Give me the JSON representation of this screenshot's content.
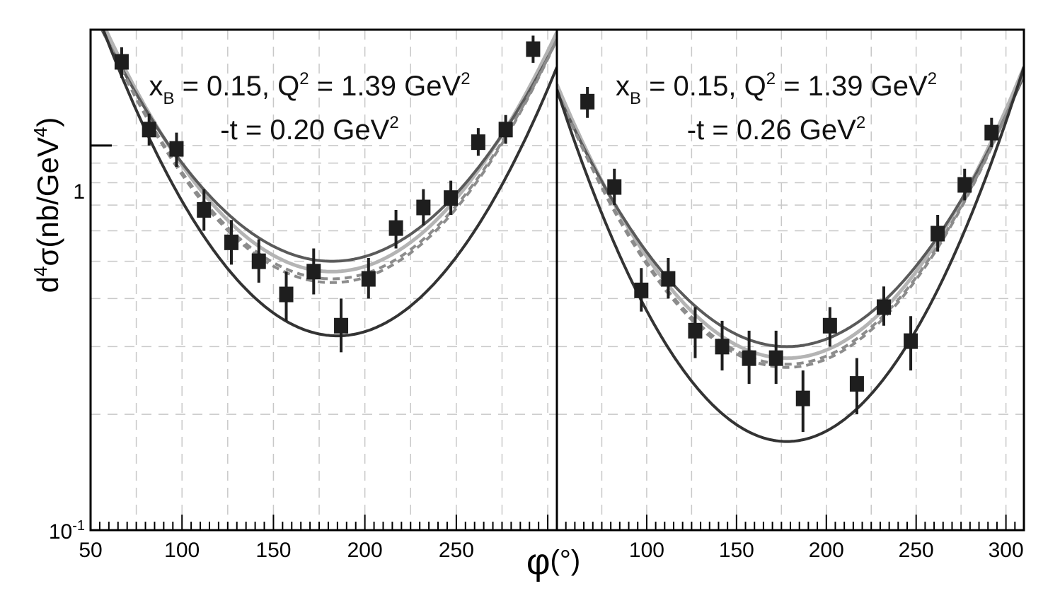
{
  "chart_data": {
    "type": "scatter",
    "y_scale": "log",
    "ylim": [
      0.1,
      2.0
    ],
    "y_tick_labels": [
      {
        "value": 1,
        "text": "1"
      },
      {
        "value": 0.1,
        "base": "10",
        "exp": "-1"
      }
    ],
    "ylabel": {
      "main": "d",
      "sup1": "4",
      "mid": "σ(nb/GeV",
      "sup2": "4",
      "end": ")"
    },
    "xlabel": {
      "main": "φ",
      "unit": "(°)"
    },
    "colors": {
      "data": "#1e1e1e",
      "curve_dark": "#333333",
      "curve_mid": "#5a5a5a",
      "curve_light": "#b4b4b4",
      "curve_dashed": "#8c8c8c",
      "grid": "#c8c8c8"
    },
    "panels": [
      {
        "xlim": [
          50,
          305
        ],
        "x_ticks": [
          50,
          100,
          150,
          200,
          250
        ],
        "x_tick_labels": [
          "50",
          "100",
          "150",
          "200",
          "250"
        ],
        "annotation": {
          "line1": {
            "x": "x",
            "xsub": "B",
            "mid": " = 0.15, Q",
            "sup": "2",
            "end": " = 1.39 GeV",
            "sup2": "2"
          },
          "line2": {
            "main": "-t = 0.20 GeV",
            "sup": "2"
          }
        },
        "points": [
          {
            "x": 67,
            "y": 1.65,
            "ylo": 1.5,
            "yhi": 1.8
          },
          {
            "x": 82,
            "y": 1.1,
            "ylo": 1.0,
            "yhi": 1.21
          },
          {
            "x": 97,
            "y": 0.98,
            "ylo": 0.88,
            "yhi": 1.08
          },
          {
            "x": 112,
            "y": 0.68,
            "ylo": 0.6,
            "yhi": 0.77
          },
          {
            "x": 127,
            "y": 0.56,
            "ylo": 0.49,
            "yhi": 0.64
          },
          {
            "x": 142,
            "y": 0.5,
            "ylo": 0.44,
            "yhi": 0.57
          },
          {
            "x": 157,
            "y": 0.41,
            "ylo": 0.35,
            "yhi": 0.47
          },
          {
            "x": 172,
            "y": 0.47,
            "ylo": 0.41,
            "yhi": 0.54
          },
          {
            "x": 187,
            "y": 0.34,
            "ylo": 0.29,
            "yhi": 0.4
          },
          {
            "x": 202,
            "y": 0.45,
            "ylo": 0.4,
            "yhi": 0.51
          },
          {
            "x": 217,
            "y": 0.61,
            "ylo": 0.54,
            "yhi": 0.68
          },
          {
            "x": 232,
            "y": 0.69,
            "ylo": 0.62,
            "yhi": 0.77
          },
          {
            "x": 247,
            "y": 0.73,
            "ylo": 0.66,
            "yhi": 0.81
          },
          {
            "x": 262,
            "y": 1.02,
            "ylo": 0.94,
            "yhi": 1.11
          },
          {
            "x": 277,
            "y": 1.1,
            "ylo": 1.01,
            "yhi": 1.2
          },
          {
            "x": 292,
            "y": 1.78,
            "ylo": 1.64,
            "yhi": 1.93
          }
        ],
        "curves": [
          {
            "style": "light",
            "ymin": 0.47,
            "yedge": 2.45,
            "center": 182
          },
          {
            "style": "mid",
            "ymin": 0.5,
            "yedge": 2.3,
            "center": 182
          },
          {
            "style": "dashed",
            "ymin": 0.45,
            "yedge": 2.35,
            "center": 182
          },
          {
            "style": "dashed",
            "ymin": 0.44,
            "yedge": 2.35,
            "center": 182
          },
          {
            "style": "dark",
            "ymin": 0.32,
            "yedge": 2.45,
            "center": 185
          }
        ]
      },
      {
        "xlim": [
          50,
          310
        ],
        "x_ticks": [
          100,
          150,
          200,
          250,
          300
        ],
        "x_tick_labels": [
          "100",
          "150",
          "200",
          "250",
          "300"
        ],
        "annotation": {
          "line1": {
            "x": "x",
            "xsub": "B",
            "mid": " = 0.15, Q",
            "sup": "2",
            "end": " = 1.39 GeV",
            "sup2": "2"
          },
          "line2": {
            "main": "-t = 0.26 GeV",
            "sup": "2"
          }
        },
        "points": [
          {
            "x": 67,
            "y": 1.3,
            "ylo": 1.18,
            "yhi": 1.42
          },
          {
            "x": 82,
            "y": 0.78,
            "ylo": 0.7,
            "yhi": 0.87
          },
          {
            "x": 97,
            "y": 0.42,
            "ylo": 0.37,
            "yhi": 0.48
          },
          {
            "x": 112,
            "y": 0.45,
            "ylo": 0.4,
            "yhi": 0.51
          },
          {
            "x": 127,
            "y": 0.33,
            "ylo": 0.28,
            "yhi": 0.38
          },
          {
            "x": 142,
            "y": 0.3,
            "ylo": 0.26,
            "yhi": 0.35
          },
          {
            "x": 157,
            "y": 0.28,
            "ylo": 0.24,
            "yhi": 0.33
          },
          {
            "x": 172,
            "y": 0.28,
            "ylo": 0.24,
            "yhi": 0.33
          },
          {
            "x": 187,
            "y": 0.22,
            "ylo": 0.18,
            "yhi": 0.26
          },
          {
            "x": 202,
            "y": 0.34,
            "ylo": 0.3,
            "yhi": 0.38
          },
          {
            "x": 217,
            "y": 0.24,
            "ylo": 0.2,
            "yhi": 0.28
          },
          {
            "x": 232,
            "y": 0.38,
            "ylo": 0.34,
            "yhi": 0.43
          },
          {
            "x": 247,
            "y": 0.31,
            "ylo": 0.26,
            "yhi": 0.36
          },
          {
            "x": 262,
            "y": 0.59,
            "ylo": 0.53,
            "yhi": 0.66
          },
          {
            "x": 277,
            "y": 0.79,
            "ylo": 0.72,
            "yhi": 0.87
          },
          {
            "x": 292,
            "y": 1.08,
            "ylo": 0.99,
            "yhi": 1.18
          }
        ],
        "curves": [
          {
            "style": "light",
            "ymin": 0.28,
            "yedge": 1.6,
            "center": 178
          },
          {
            "style": "mid",
            "ymin": 0.3,
            "yedge": 1.52,
            "center": 178
          },
          {
            "style": "dashed",
            "ymin": 0.27,
            "yedge": 1.55,
            "center": 178
          },
          {
            "style": "dashed",
            "ymin": 0.265,
            "yedge": 1.55,
            "center": 178
          },
          {
            "style": "dark",
            "ymin": 0.17,
            "yedge": 1.6,
            "center": 178
          }
        ]
      }
    ]
  }
}
